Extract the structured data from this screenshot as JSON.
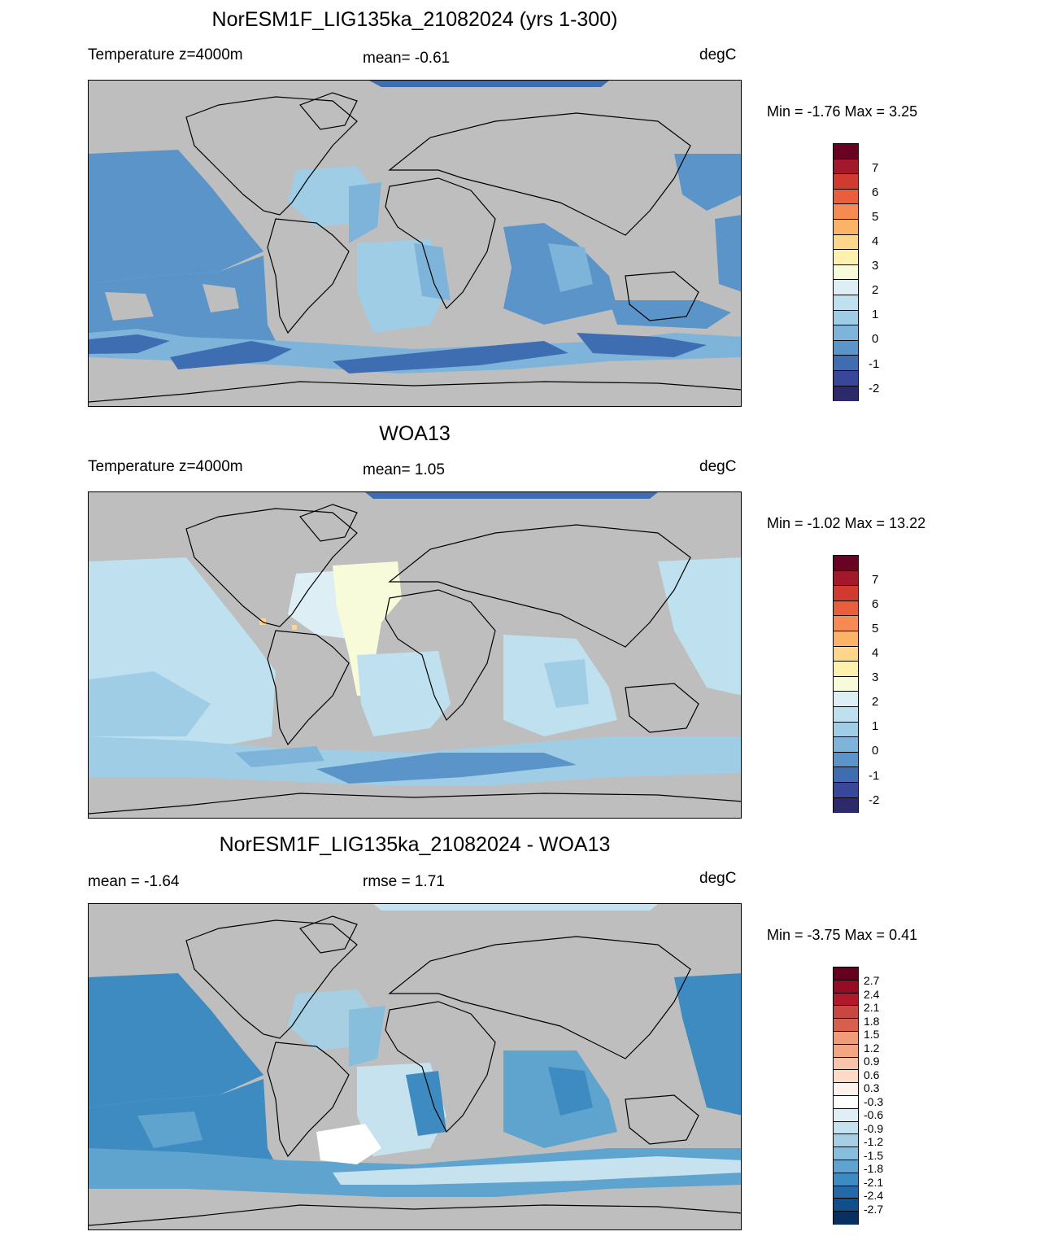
{
  "panels": [
    {
      "title": "NorESM1F_LIG135ka_21082024 (yrs 1-300)",
      "left_label": "Temperature z=4000m",
      "mid_label": "mean=  -0.61",
      "units": "degC",
      "minmax": "Min =  -1.76 Max =   3.25",
      "colorbar_ticks": [
        "7",
        "6",
        "5",
        "4",
        "3",
        "2",
        "1",
        "0",
        "-1",
        "-2"
      ]
    },
    {
      "title": "WOA13",
      "left_label": "Temperature z=4000m",
      "mid_label": "mean=   1.05",
      "units": "degC",
      "minmax": "Min =  -1.02 Max =  13.22",
      "colorbar_ticks": [
        "7",
        "6",
        "5",
        "4",
        "3",
        "2",
        "1",
        "0",
        "-1",
        "-2"
      ]
    },
    {
      "title": "NorESM1F_LIG135ka_21082024 - WOA13",
      "left_label": "mean =  -1.64",
      "mid_label": "rmse =   1.71",
      "units": "degC",
      "minmax": "Min =  -3.75 Max =   0.41",
      "colorbar_ticks": [
        "2.7",
        "2.4",
        "2.1",
        "1.8",
        "1.5",
        "1.2",
        "0.9",
        "0.6",
        "0.3",
        "-0.3",
        "-0.6",
        "-0.9",
        "-1.2",
        "-1.5",
        "-1.8",
        "-2.1",
        "-2.4",
        "-2.7"
      ]
    }
  ],
  "colors": {
    "land": "#bebebe",
    "temp_scale": [
      "#6a0323",
      "#a3182b",
      "#d13a2f",
      "#ea5e3c",
      "#f68a53",
      "#fbb368",
      "#fdd68b",
      "#fef0ad",
      "#f7fbd9",
      "#ddeff5",
      "#bfe0ee",
      "#9fcde6",
      "#7eb4d9",
      "#5a94c8",
      "#3e6db2",
      "#39479a",
      "#2c2a6a"
    ],
    "diff_scale": [
      "#67001f",
      "#940d25",
      "#b2182b",
      "#c94741",
      "#d6604d",
      "#f09c7b",
      "#f4a582",
      "#f8c5ab",
      "#fddbc7",
      "#fdf2ec",
      "#ffffff",
      "#e0eff6",
      "#c6e2ef",
      "#a6cfe4",
      "#87bedc",
      "#5fa4cf",
      "#3d8bc0",
      "#2469a8",
      "#124e8a",
      "#053061"
    ],
    "panel1_ocean": [
      "#5a94c8",
      "#7eb4d9",
      "#9fcde6",
      "#3e6db2"
    ],
    "panel2_ocean": [
      "#bfe0ee",
      "#9fcde6",
      "#ddeff5",
      "#f7fbd9",
      "#7eb4d9",
      "#5a94c8"
    ],
    "panel3_ocean": [
      "#3d8bc0",
      "#5fa4cf",
      "#87bedc",
      "#a6cfe4",
      "#c6e2ef",
      "#ffffff",
      "#2469a8"
    ]
  }
}
